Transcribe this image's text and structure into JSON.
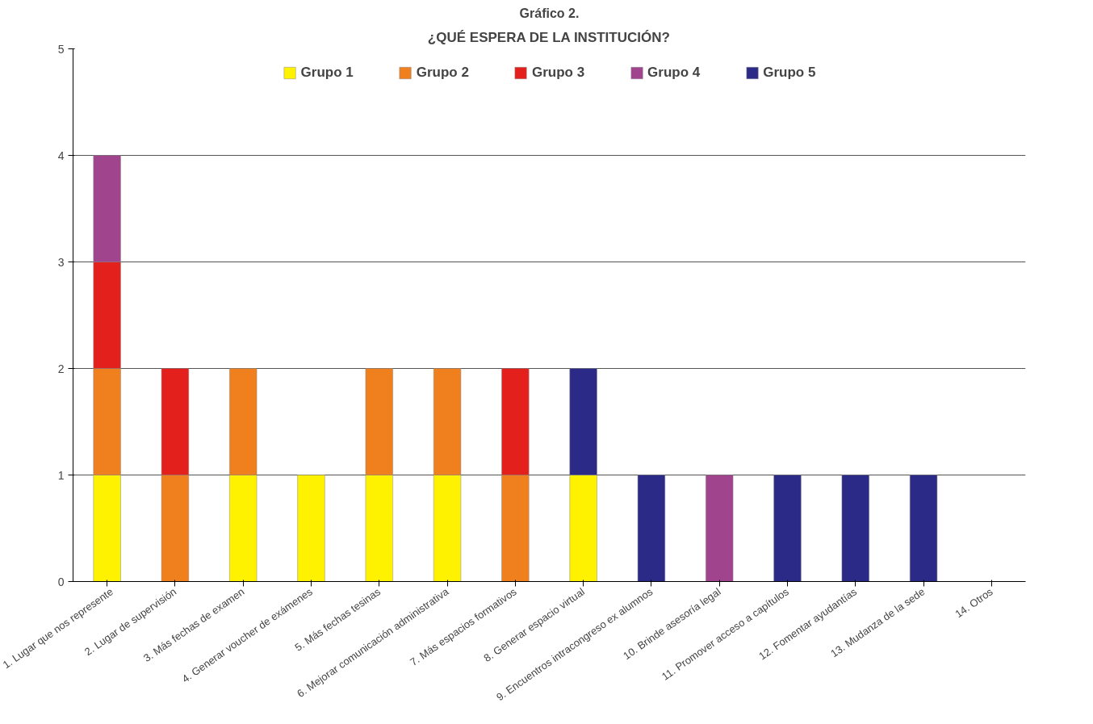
{
  "chart_data": {
    "type": "bar",
    "title": "Gráfico 2.",
    "subtitle": "¿QUÉ ESPERA DE LA INSTITUCIÓN?",
    "stacked": true,
    "categories": [
      "1. Lugar que nos represente",
      "2. Lugar de supervisión",
      "3. Más fechas de examen",
      "4. Generar voucher de exámenes",
      "5. Más fechas tesinas",
      "6. Mejorar comunicación administrativa",
      "7. Más espacios formativos",
      "8. Generar espacio virtual",
      "9. Encuentros intracongreso ex alumnos",
      "10. Brinde asesoría legal",
      "11. Promover acceso a capítulos",
      "12. Fomentar ayudantías",
      "13. Mudanza de la sede",
      "14. Otros"
    ],
    "series": [
      {
        "name": "Grupo 1",
        "color": "#fff200",
        "values": [
          1,
          null,
          1,
          1,
          1,
          1,
          null,
          1,
          null,
          null,
          null,
          null,
          null,
          null
        ]
      },
      {
        "name": "Grupo 2",
        "color": "#f07f1e",
        "values": [
          1,
          1,
          1,
          null,
          1,
          1,
          1,
          null,
          null,
          null,
          null,
          null,
          null,
          null
        ]
      },
      {
        "name": "Grupo 3",
        "color": "#e3201b",
        "values": [
          1,
          1,
          null,
          null,
          null,
          null,
          1,
          null,
          null,
          null,
          null,
          null,
          null,
          null
        ]
      },
      {
        "name": "Grupo 4",
        "color": "#a0448e",
        "values": [
          1,
          null,
          null,
          null,
          null,
          null,
          null,
          null,
          null,
          1,
          null,
          null,
          null,
          null
        ]
      },
      {
        "name": "Grupo 5",
        "color": "#2b2a86",
        "values": [
          null,
          null,
          null,
          null,
          null,
          null,
          null,
          1,
          1,
          null,
          1,
          1,
          1,
          null
        ]
      }
    ],
    "ylim": [
      0,
      5
    ],
    "yticks": [
      0,
      1,
      2,
      3,
      4,
      5
    ],
    "grid": "y",
    "legend": "top"
  }
}
